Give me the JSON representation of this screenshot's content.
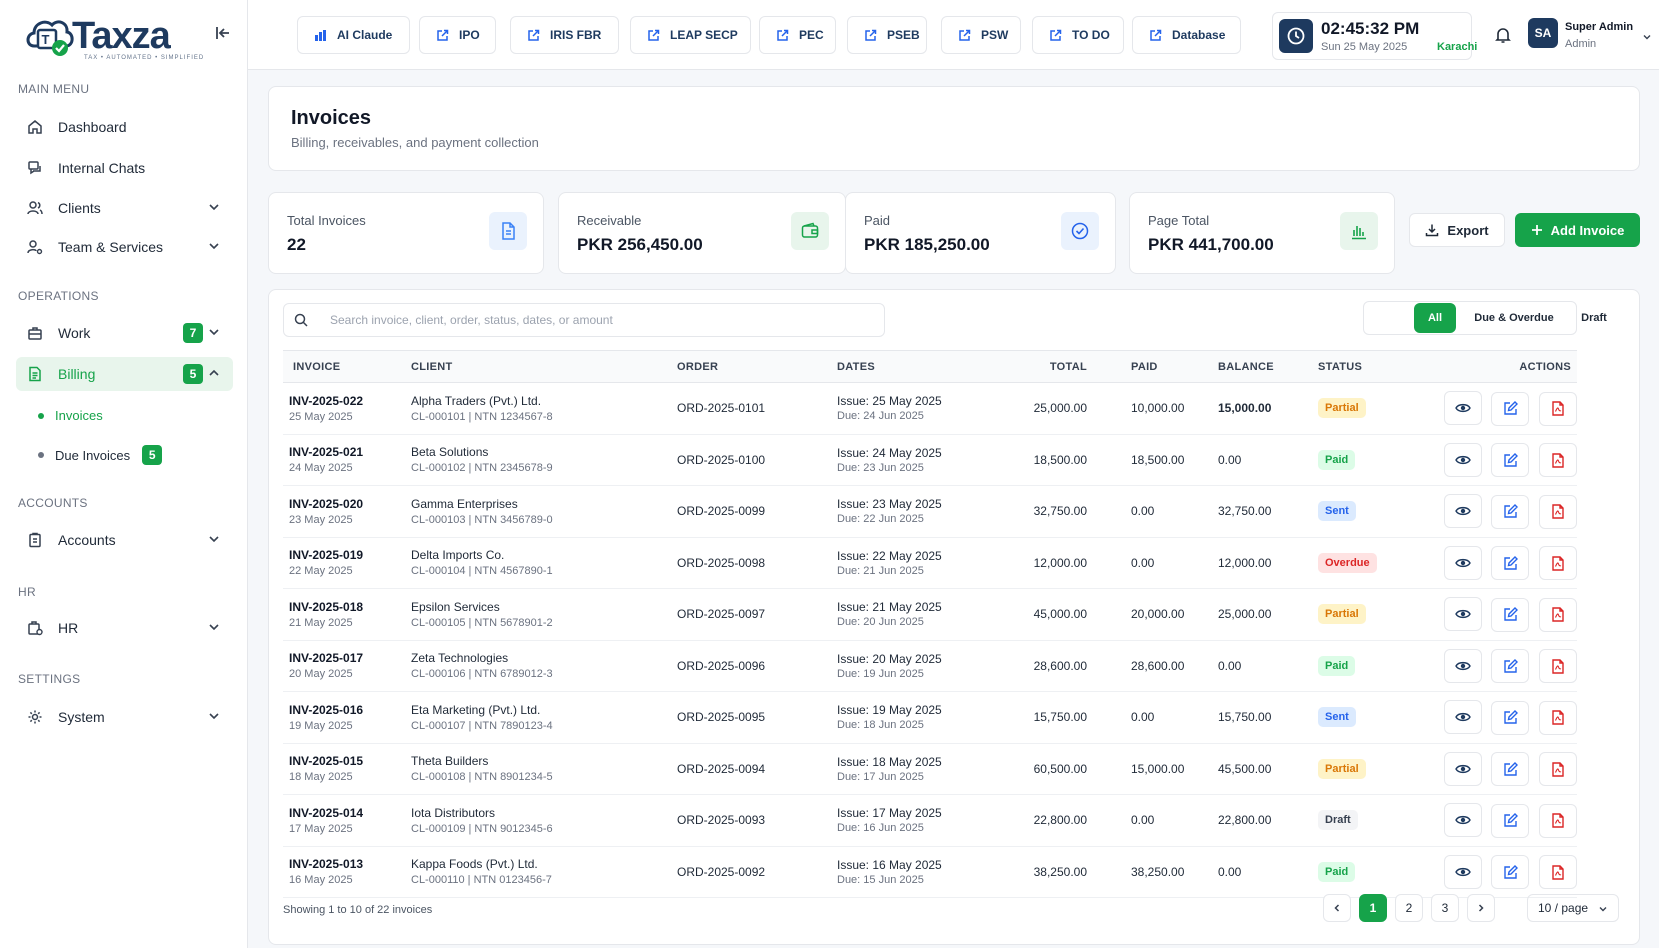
{
  "brand": {
    "name": "Taxza",
    "tagline": "TAX • AUTOMATED • SIMPLIFIED",
    "primary_color": "#1e3a5f",
    "accent_color": "#16a34a"
  },
  "sidebar": {
    "sections": [
      {
        "label": "MAIN MENU"
      },
      {
        "label": "OPERATIONS"
      },
      {
        "label": "ACCOUNTS"
      },
      {
        "label": "HR"
      },
      {
        "label": "SETTINGS"
      }
    ],
    "items": {
      "dashboard": {
        "label": "Dashboard",
        "icon": "home-icon"
      },
      "internal_chats": {
        "label": "Internal Chats",
        "icon": "chat-icon"
      },
      "clients": {
        "label": "Clients",
        "icon": "users-icon"
      },
      "team_services": {
        "label": "Team & Services",
        "icon": "user-cog-icon"
      },
      "work": {
        "label": "Work",
        "badge": "7",
        "icon": "briefcase-icon"
      },
      "billing": {
        "label": "Billing",
        "badge": "5",
        "icon": "file-text-icon"
      },
      "accounts": {
        "label": "Accounts",
        "icon": "clipboard-icon"
      },
      "hr": {
        "label": "HR",
        "icon": "hr-icon"
      },
      "system": {
        "label": "System",
        "icon": "gear-icon"
      }
    },
    "billing_sub": {
      "invoices": {
        "label": "Invoices"
      },
      "due_invoices": {
        "label": "Due Invoices",
        "badge": "5"
      }
    }
  },
  "topbar": {
    "quick_links": [
      {
        "label": "AI Claude",
        "icon": "chart-icon"
      },
      {
        "label": "IPO",
        "icon": "external-link-icon"
      },
      {
        "label": "IRIS FBR",
        "icon": "external-link-icon"
      },
      {
        "label": "LEAP SECP",
        "icon": "external-link-icon"
      },
      {
        "label": "PEC",
        "icon": "external-link-icon"
      },
      {
        "label": "PSEB",
        "icon": "external-link-icon"
      },
      {
        "label": "PSW",
        "icon": "external-link-icon"
      },
      {
        "label": "TO DO",
        "icon": "external-link-icon"
      },
      {
        "label": "Database",
        "icon": "external-link-icon"
      }
    ],
    "clock": {
      "time": "02:45:32 PM",
      "date": "Sun 25 May 2025",
      "city": "Karachi"
    },
    "user": {
      "initials": "SA",
      "name": "Super Admin",
      "role": "Admin"
    }
  },
  "page": {
    "title": "Invoices",
    "subtitle": "Billing, receivables, and payment collection"
  },
  "stats": [
    {
      "label": "Total Invoices",
      "value": "22",
      "icon": "document-icon",
      "color": "#3b82f6",
      "bg": "#eaf2fd"
    },
    {
      "label": "Receivable",
      "value": "PKR 256,450.00",
      "icon": "wallet-icon",
      "color": "#16a34a",
      "bg": "#e8f5ec"
    },
    {
      "label": "Paid",
      "value": "PKR 185,250.00",
      "icon": "check-circle-icon",
      "color": "#2563eb",
      "bg": "#eaf2fd"
    },
    {
      "label": "Page Total",
      "value": "PKR 441,700.00",
      "icon": "bar-chart-icon",
      "color": "#16a34a",
      "bg": "#e8f5ec"
    }
  ],
  "actions": {
    "export": "Export",
    "add_invoice": "Add Invoice"
  },
  "search": {
    "placeholder": "Search invoice, client, order, status, dates, or amount",
    "value": ""
  },
  "filters": {
    "all": "All",
    "due": "Due & Overdue",
    "draft": "Draft",
    "selected": "All"
  },
  "table": {
    "columns": {
      "invoice": "INVOICE",
      "client": "CLIENT",
      "order": "ORDER",
      "dates": "DATES",
      "total": "TOTAL",
      "paid": "PAID",
      "balance": "BALANCE",
      "status": "STATUS",
      "actions": "ACTIONS"
    },
    "rows": [
      {
        "id": "INV-2025-022",
        "date": "25 May 2025",
        "client": "Alpha Traders (Pvt.) Ltd.",
        "client_meta": "CL-000101 | NTN 1234567-8",
        "order": "ORD-2025-0101",
        "issue": "Issue: 25 May 2025",
        "due": "Due: 24 Jun 2025",
        "total": "25,000.00",
        "paid": "10,000.00",
        "balance": "15,000.00",
        "status": "Partial"
      },
      {
        "id": "INV-2025-021",
        "date": "24 May 2025",
        "client": "Beta Solutions",
        "client_meta": "CL-000102 | NTN 2345678-9",
        "order": "ORD-2025-0100",
        "issue": "Issue: 24 May 2025",
        "due": "Due: 23 Jun 2025",
        "total": "18,500.00",
        "paid": "18,500.00",
        "balance": "0.00",
        "status": "Paid"
      },
      {
        "id": "INV-2025-020",
        "date": "23 May 2025",
        "client": "Gamma Enterprises",
        "client_meta": "CL-000103 | NTN 3456789-0",
        "order": "ORD-2025-0099",
        "issue": "Issue: 23 May 2025",
        "due": "Due: 22 Jun 2025",
        "total": "32,750.00",
        "paid": "0.00",
        "balance": "32,750.00",
        "status": "Sent"
      },
      {
        "id": "INV-2025-019",
        "date": "22 May 2025",
        "client": "Delta Imports Co.",
        "client_meta": "CL-000104 | NTN 4567890-1",
        "order": "ORD-2025-0098",
        "issue": "Issue: 22 May 2025",
        "due": "Due: 21 Jun 2025",
        "total": "12,000.00",
        "paid": "0.00",
        "balance": "12,000.00",
        "status": "Overdue"
      },
      {
        "id": "INV-2025-018",
        "date": "21 May 2025",
        "client": "Epsilon Services",
        "client_meta": "CL-000105 | NTN 5678901-2",
        "order": "ORD-2025-0097",
        "issue": "Issue: 21 May 2025",
        "due": "Due: 20 Jun 2025",
        "total": "45,000.00",
        "paid": "20,000.00",
        "balance": "25,000.00",
        "status": "Partial"
      },
      {
        "id": "INV-2025-017",
        "date": "20 May 2025",
        "client": "Zeta Technologies",
        "client_meta": "CL-000106 | NTN 6789012-3",
        "order": "ORD-2025-0096",
        "issue": "Issue: 20 May 2025",
        "due": "Due: 19 Jun 2025",
        "total": "28,600.00",
        "paid": "28,600.00",
        "balance": "0.00",
        "status": "Paid"
      },
      {
        "id": "INV-2025-016",
        "date": "19 May 2025",
        "client": "Eta Marketing (Pvt.) Ltd.",
        "client_meta": "CL-000107 | NTN 7890123-4",
        "order": "ORD-2025-0095",
        "issue": "Issue: 19 May 2025",
        "due": "Due: 18 Jun 2025",
        "total": "15,750.00",
        "paid": "0.00",
        "balance": "15,750.00",
        "status": "Sent"
      },
      {
        "id": "INV-2025-015",
        "date": "18 May 2025",
        "client": "Theta Builders",
        "client_meta": "CL-000108 | NTN 8901234-5",
        "order": "ORD-2025-0094",
        "issue": "Issue: 18 May 2025",
        "due": "Due: 17 Jun 2025",
        "total": "60,500.00",
        "paid": "15,000.00",
        "balance": "45,500.00",
        "status": "Partial"
      },
      {
        "id": "INV-2025-014",
        "date": "17 May 2025",
        "client": "Iota Distributors",
        "client_meta": "CL-000109 | NTN 9012345-6",
        "order": "ORD-2025-0093",
        "issue": "Issue: 17 May 2025",
        "due": "Due: 16 Jun 2025",
        "total": "22,800.00",
        "paid": "0.00",
        "balance": "22,800.00",
        "status": "Draft"
      },
      {
        "id": "INV-2025-013",
        "date": "16 May 2025",
        "client": "Kappa Foods (Pvt.) Ltd.",
        "client_meta": "CL-000110 | NTN 0123456-7",
        "order": "ORD-2025-0092",
        "issue": "Issue: 16 May 2025",
        "due": "Due: 15 Jun 2025",
        "total": "38,250.00",
        "paid": "38,250.00",
        "balance": "0.00",
        "status": "Paid"
      }
    ]
  },
  "status_styles": {
    "Partial": {
      "bg": "#fef3c7",
      "fg": "#d97706"
    },
    "Paid": {
      "bg": "#dcfce7",
      "fg": "#16a34a"
    },
    "Sent": {
      "bg": "#dbeafe",
      "fg": "#2563eb"
    },
    "Overdue": {
      "bg": "#fee2e2",
      "fg": "#dc2626"
    },
    "Draft": {
      "bg": "#f3f4f6",
      "fg": "#374151"
    }
  },
  "pagination": {
    "summary": "Showing 1 to 10 of 22 invoices",
    "pages": [
      "1",
      "2",
      "3"
    ],
    "current": "1",
    "per_page": "10 / page"
  }
}
